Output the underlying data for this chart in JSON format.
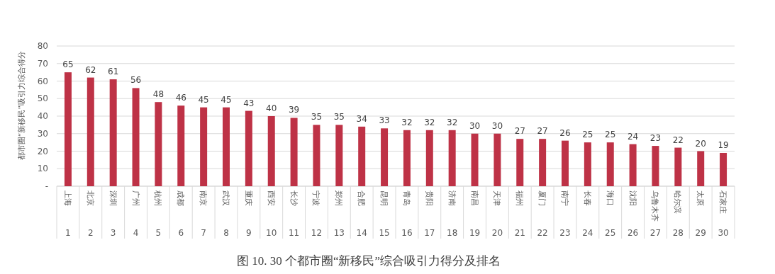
{
  "chart_data": {
    "type": "bar",
    "title": "图 10. 30 个都市圈“新移民”综合吸引力得分及排名",
    "ylabel": "都市圈“新移民”吸引力综合得分",
    "categories": [
      "上海",
      "北京",
      "深圳",
      "广州",
      "杭州",
      "成都",
      "南京",
      "武汉",
      "重庆",
      "西安",
      "长沙",
      "宁波",
      "郑州",
      "合肥",
      "昆明",
      "青岛",
      "贵阳",
      "济南",
      "南昌",
      "天津",
      "福州",
      "厦门",
      "南宁",
      "长春",
      "海口",
      "沈阳",
      "乌鲁木齐",
      "哈尔滨",
      "太原",
      "石家庄"
    ],
    "values": [
      65,
      62,
      61,
      56,
      48,
      46,
      45,
      45,
      43,
      40,
      39,
      35,
      35,
      34,
      33,
      32,
      32,
      32,
      30,
      30,
      27,
      27,
      26,
      25,
      25,
      24,
      23,
      22,
      20,
      19
    ],
    "color": "#be3246",
    "data_labels": true,
    "grid": "y",
    "ylim": [
      0,
      80
    ],
    "yticks": [
      {
        "value": 0,
        "label": "-"
      },
      10,
      20,
      30,
      40,
      50,
      60,
      70,
      80
    ],
    "x2lim": [
      0.5,
      30.5
    ],
    "x2ticks": [
      1,
      2,
      3,
      4,
      5,
      6,
      7,
      8,
      9,
      10,
      11,
      12,
      13,
      14,
      15,
      16,
      17,
      18,
      19,
      20,
      21,
      22,
      23,
      24,
      25,
      26,
      27,
      28,
      29,
      30
    ]
  }
}
